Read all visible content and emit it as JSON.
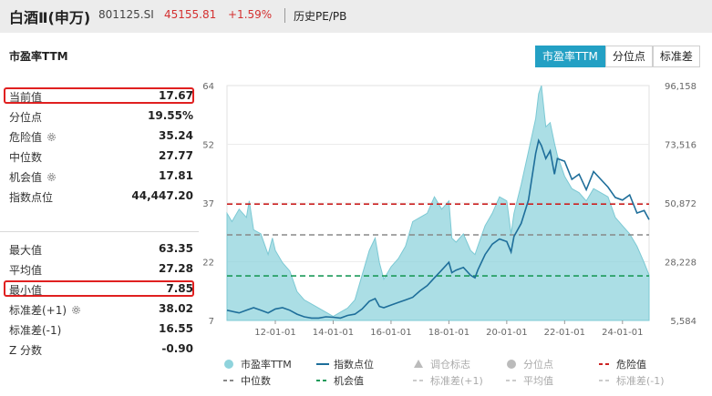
{
  "header": {
    "title": "白酒Ⅱ(申万)",
    "code": "801125.SI",
    "price": "45155.81",
    "change": "+1.59%",
    "link": "历史PE/PB"
  },
  "section_title": "市盈率TTM",
  "tabs": [
    {
      "label": "市盈率TTM",
      "active": true
    },
    {
      "label": "分位点",
      "active": false
    },
    {
      "label": "标准差",
      "active": false
    }
  ],
  "stats_top": [
    {
      "label": "当前值",
      "value": "17.67",
      "highlight": true
    },
    {
      "label": "分位点",
      "value": "19.55%"
    },
    {
      "label": "危险值",
      "value": "35.24",
      "gear": true
    },
    {
      "label": "中位数",
      "value": "27.77"
    },
    {
      "label": "机会值",
      "value": "17.81",
      "gear": true
    },
    {
      "label": "指数点位",
      "value": "44,447.20"
    }
  ],
  "stats_bottom": [
    {
      "label": "最大值",
      "value": "63.35"
    },
    {
      "label": "平均值",
      "value": "27.28"
    },
    {
      "label": "最小值",
      "value": "7.85",
      "highlight": true
    },
    {
      "label": "标准差(+1)",
      "value": "38.02",
      "gear": true
    },
    {
      "label": "标准差(-1)",
      "value": "16.55"
    },
    {
      "label": "Z 分数",
      "value": "-0.90"
    }
  ],
  "colors": {
    "pe_fill": "#8fd3dc",
    "index_line": "#1e6e9a",
    "danger": "#cc2222",
    "median": "#888888",
    "opportunity": "#1d9a5a",
    "active_tab": "#23a0c4",
    "highlight_border": "#e02020"
  },
  "chart_data": {
    "type": "area",
    "y_left_ticks": [
      "64",
      "52",
      "37",
      "22",
      "7"
    ],
    "y_right_ticks": [
      "96,158",
      "73,516",
      "50,872",
      "28,228",
      "5,584"
    ],
    "x_ticks": [
      "12-01-01",
      "14-01-01",
      "16-01-01",
      "18-01-01",
      "20-01-01",
      "22-01-01",
      "24-01-01"
    ],
    "ylim_left": [
      7,
      64
    ],
    "ylim_right": [
      5584,
      96158
    ],
    "xlim": [
      2010.33,
      2024.92
    ],
    "reference_lines": {
      "danger": 35.24,
      "median": 27.77,
      "opportunity": 17.81
    },
    "series": [
      {
        "name": "市盈率TTM",
        "axis": "left",
        "x": [
          2010.33,
          2010.5,
          2010.75,
          2011.0,
          2011.1,
          2011.25,
          2011.5,
          2011.75,
          2011.9,
          2012.0,
          2012.25,
          2012.5,
          2012.75,
          2013.0,
          2013.25,
          2013.5,
          2013.75,
          2014.0,
          2014.25,
          2014.5,
          2014.75,
          2015.0,
          2015.25,
          2015.45,
          2015.6,
          2015.75,
          2016.0,
          2016.25,
          2016.5,
          2016.75,
          2017.0,
          2017.25,
          2017.5,
          2017.75,
          2018.0,
          2018.1,
          2018.25,
          2018.5,
          2018.75,
          2018.9,
          2019.0,
          2019.25,
          2019.5,
          2019.75,
          2020.0,
          2020.15,
          2020.25,
          2020.5,
          2020.75,
          2021.0,
          2021.1,
          2021.2,
          2021.35,
          2021.5,
          2021.65,
          2021.75,
          2022.0,
          2022.25,
          2022.5,
          2022.75,
          2023.0,
          2023.25,
          2023.5,
          2023.75,
          2024.0,
          2024.25,
          2024.5,
          2024.75,
          2024.92
        ],
        "values": [
          33,
          31,
          34,
          32,
          36,
          29,
          28,
          23,
          27,
          24,
          21,
          19,
          14,
          12,
          11,
          10,
          9,
          8,
          9,
          10,
          12,
          18,
          24,
          27,
          21,
          17,
          20,
          22,
          25,
          31,
          32,
          33,
          37,
          34,
          36,
          27,
          26,
          28,
          24,
          23,
          25,
          30,
          33,
          37,
          36,
          28,
          33,
          40,
          48,
          56,
          62,
          64,
          54,
          55,
          50,
          47,
          42,
          39,
          38,
          36,
          39,
          38,
          37,
          32,
          30,
          28,
          25,
          21,
          18
        ]
      },
      {
        "name": "指数点位",
        "axis": "right",
        "x": [
          2010.33,
          2010.75,
          2011.0,
          2011.25,
          2011.5,
          2011.75,
          2012.0,
          2012.25,
          2012.5,
          2012.75,
          2013.0,
          2013.25,
          2013.5,
          2013.75,
          2014.0,
          2014.25,
          2014.5,
          2014.75,
          2015.0,
          2015.25,
          2015.45,
          2015.6,
          2015.75,
          2016.0,
          2016.25,
          2016.5,
          2016.75,
          2017.0,
          2017.25,
          2017.5,
          2017.75,
          2018.0,
          2018.1,
          2018.25,
          2018.5,
          2018.75,
          2018.9,
          2019.0,
          2019.25,
          2019.5,
          2019.75,
          2020.0,
          2020.15,
          2020.25,
          2020.5,
          2020.75,
          2021.0,
          2021.1,
          2021.2,
          2021.35,
          2021.5,
          2021.65,
          2021.75,
          2022.0,
          2022.25,
          2022.5,
          2022.75,
          2023.0,
          2023.25,
          2023.5,
          2023.75,
          2024.0,
          2024.25,
          2024.5,
          2024.75,
          2024.92
        ],
        "values": [
          9500,
          8500,
          9500,
          10500,
          9500,
          8500,
          10000,
          10500,
          9500,
          8000,
          7000,
          6500,
          6500,
          7000,
          6800,
          6500,
          7500,
          8000,
          10000,
          13000,
          14000,
          11000,
          10500,
          11500,
          12500,
          13500,
          14500,
          17000,
          19000,
          22000,
          25000,
          28000,
          24000,
          25000,
          26000,
          23000,
          22000,
          25000,
          31000,
          35000,
          37000,
          36000,
          32000,
          38000,
          43000,
          52000,
          70000,
          75000,
          73000,
          68000,
          71000,
          62000,
          68000,
          67000,
          60000,
          62000,
          56000,
          63000,
          60000,
          57000,
          53000,
          52000,
          54000,
          47000,
          48000,
          44447
        ]
      }
    ],
    "legend": [
      {
        "label": "市盈率TTM",
        "kind": "dot",
        "color": "#8fd3dc",
        "active": true
      },
      {
        "label": "指数点位",
        "kind": "line",
        "color": "#1e6e9a",
        "active": true
      },
      {
        "label": "调仓标志",
        "kind": "triangle",
        "color": "#bbbbbb",
        "active": false
      },
      {
        "label": "分位点",
        "kind": "dot",
        "color": "#bbbbbb",
        "active": false
      },
      {
        "label": "危险值",
        "kind": "dash",
        "color": "#cc2222",
        "active": true
      },
      {
        "label": "中位数",
        "kind": "dash",
        "color": "#888888",
        "active": true
      },
      {
        "label": "机会值",
        "kind": "dash",
        "color": "#1d9a5a",
        "active": true
      },
      {
        "label": "标准差(+1)",
        "kind": "dash",
        "color": "#cccccc",
        "active": false
      },
      {
        "label": "平均值",
        "kind": "dash",
        "color": "#cccccc",
        "active": false
      },
      {
        "label": "标准差(-1)",
        "kind": "dash",
        "color": "#cccccc",
        "active": false
      }
    ]
  }
}
